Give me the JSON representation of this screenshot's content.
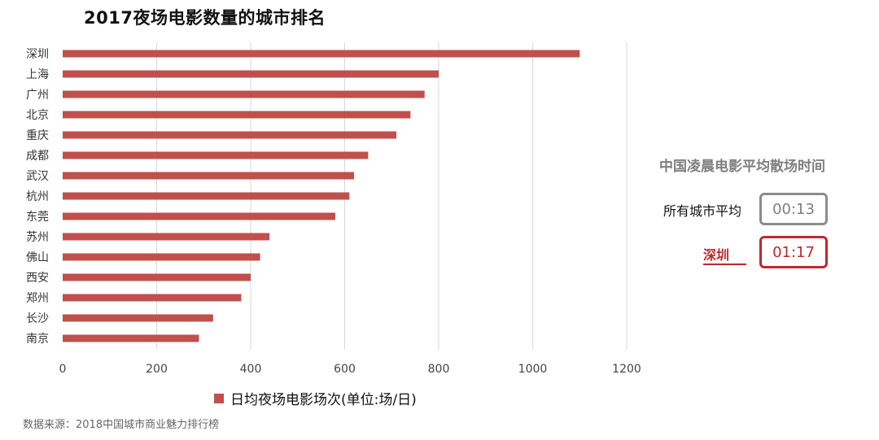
{
  "title": "2017夜场电影数量的城市排名",
  "colors": {
    "bar": "#c0504d",
    "highlight": "#c0282d"
  },
  "chart_data": {
    "type": "bar",
    "orientation": "horizontal",
    "title": "2017夜场电影数量的城市排名",
    "categories": [
      "深圳",
      "上海",
      "广州",
      "北京",
      "重庆",
      "成都",
      "武汉",
      "杭州",
      "东莞",
      "苏州",
      "佛山",
      "西安",
      "郑州",
      "长沙",
      "南京"
    ],
    "series": [
      {
        "name": "日均夜场电影场次(单位:场/日)",
        "values": [
          1100,
          800,
          770,
          740,
          710,
          650,
          620,
          610,
          580,
          440,
          420,
          400,
          380,
          320,
          290
        ]
      }
    ],
    "xlim": [
      0,
      1200
    ],
    "xticks": [
      0,
      200,
      400,
      600,
      800,
      1000,
      1200
    ],
    "grid": true,
    "legend_position": "bottom"
  },
  "legend_label": "日均夜场电影场次(单位:场/日)",
  "source": "数据来源：2018中国城市商业魅力排行榜",
  "panel": {
    "title": "中国凌晨电影平均散场时间",
    "avg_label": "所有城市平均",
    "avg_value": "00:13",
    "city_label": "深圳",
    "city_value": "01:17"
  }
}
